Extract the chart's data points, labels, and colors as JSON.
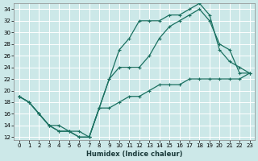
{
  "xlabel": "Humidex (Indice chaleur)",
  "bg_color": "#cce8e8",
  "grid_color": "#ffffff",
  "line_color": "#1a7060",
  "xlim": [
    -0.5,
    23.5
  ],
  "ylim": [
    11.5,
    35.0
  ],
  "xticks": [
    0,
    1,
    2,
    3,
    4,
    5,
    6,
    7,
    8,
    9,
    10,
    11,
    12,
    13,
    14,
    15,
    16,
    17,
    18,
    19,
    20,
    21,
    22,
    23
  ],
  "yticks": [
    12,
    14,
    16,
    18,
    20,
    22,
    24,
    26,
    28,
    30,
    32,
    34
  ],
  "line1_x": [
    0,
    1,
    2,
    3,
    4,
    5,
    6,
    7,
    8,
    9,
    10,
    11,
    12,
    13,
    14,
    15,
    16,
    17,
    18,
    19,
    20,
    21,
    22,
    23
  ],
  "line1_y": [
    19,
    18,
    16,
    14,
    13,
    13,
    12,
    12,
    17,
    22,
    27,
    29,
    32,
    32,
    32,
    33,
    33,
    34,
    35,
    33,
    27,
    25,
    24,
    23
  ],
  "line2_x": [
    0,
    1,
    2,
    3,
    4,
    5,
    6,
    7,
    8,
    9,
    10,
    11,
    12,
    13,
    14,
    15,
    16,
    17,
    18,
    19,
    20,
    21,
    22,
    23
  ],
  "line2_y": [
    19,
    18,
    16,
    14,
    13,
    13,
    12,
    12,
    17,
    22,
    24,
    24,
    24,
    26,
    29,
    31,
    32,
    33,
    34,
    32,
    28,
    27,
    23,
    23
  ],
  "line3_x": [
    0,
    1,
    2,
    3,
    4,
    5,
    6,
    7,
    8,
    9,
    10,
    11,
    12,
    13,
    14,
    15,
    16,
    17,
    18,
    19,
    20,
    21,
    22,
    23
  ],
  "line3_y": [
    19,
    18,
    16,
    14,
    14,
    13,
    13,
    12,
    17,
    17,
    18,
    19,
    19,
    20,
    21,
    21,
    21,
    22,
    22,
    22,
    22,
    22,
    22,
    23
  ]
}
